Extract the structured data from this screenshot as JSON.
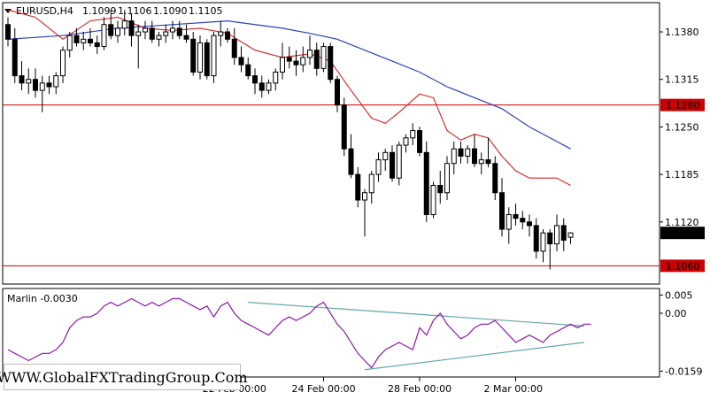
{
  "chart_data": [
    {
      "type": "candlestick",
      "symbol_label": "EURUSD,H4",
      "ohlc_header": [
        "1.1099",
        "1.1106",
        "1.1090",
        "1.1105"
      ],
      "ylim": [
        1.1035,
        1.142
      ],
      "y_ticks": [
        "1.1380",
        "1.1315",
        "1.1250",
        "1.1185",
        "1.1120"
      ],
      "current_price": {
        "label": "1.1105",
        "value": 1.1105
      },
      "levels": [
        {
          "label": "1.1280",
          "value": 1.128,
          "color": "#cc0000"
        },
        {
          "label": "1.1060",
          "value": 1.106,
          "color": "#cc0000"
        }
      ],
      "candles": [
        [
          1.139,
          1.14,
          1.136,
          1.137
        ],
        [
          1.137,
          1.1385,
          1.131,
          1.132
        ],
        [
          1.132,
          1.134,
          1.13,
          1.131
        ],
        [
          1.131,
          1.133,
          1.1295,
          1.1315
        ],
        [
          1.1315,
          1.133,
          1.129,
          1.13
        ],
        [
          1.13,
          1.132,
          1.127,
          1.131
        ],
        [
          1.131,
          1.132,
          1.1295,
          1.1305
        ],
        [
          1.1305,
          1.1325,
          1.1295,
          1.132
        ],
        [
          1.132,
          1.136,
          1.131,
          1.1355
        ],
        [
          1.1355,
          1.138,
          1.1345,
          1.1375
        ],
        [
          1.1375,
          1.1385,
          1.136,
          1.1365
        ],
        [
          1.1365,
          1.138,
          1.1355,
          1.137
        ],
        [
          1.137,
          1.1385,
          1.136,
          1.1365
        ],
        [
          1.1365,
          1.1375,
          1.135,
          1.136
        ],
        [
          1.136,
          1.14,
          1.1355,
          1.139
        ],
        [
          1.139,
          1.141,
          1.137,
          1.1375
        ],
        [
          1.1375,
          1.1395,
          1.1365,
          1.1385
        ],
        [
          1.1385,
          1.141,
          1.1375,
          1.1395
        ],
        [
          1.1395,
          1.1405,
          1.136,
          1.1375
        ],
        [
          1.1375,
          1.139,
          1.133,
          1.138
        ],
        [
          1.138,
          1.1395,
          1.137,
          1.1385
        ],
        [
          1.1385,
          1.1395,
          1.1365,
          1.137
        ],
        [
          1.137,
          1.138,
          1.136,
          1.1375
        ],
        [
          1.1375,
          1.139,
          1.1365,
          1.138
        ],
        [
          1.138,
          1.1395,
          1.137,
          1.1385
        ],
        [
          1.1385,
          1.1395,
          1.137,
          1.1375
        ],
        [
          1.1375,
          1.139,
          1.1365,
          1.137
        ],
        [
          1.137,
          1.138,
          1.132,
          1.1325
        ],
        [
          1.1325,
          1.1375,
          1.1315,
          1.1365
        ],
        [
          1.1365,
          1.137,
          1.1315,
          1.132
        ],
        [
          1.132,
          1.138,
          1.131,
          1.1375
        ],
        [
          1.1375,
          1.1395,
          1.136,
          1.138
        ],
        [
          1.138,
          1.1385,
          1.1365,
          1.137
        ],
        [
          1.137,
          1.1385,
          1.1335,
          1.1345
        ],
        [
          1.1345,
          1.136,
          1.1325,
          1.1335
        ],
        [
          1.1335,
          1.1345,
          1.1315,
          1.132
        ],
        [
          1.132,
          1.133,
          1.1295,
          1.131
        ],
        [
          1.131,
          1.132,
          1.129,
          1.13
        ],
        [
          1.13,
          1.1315,
          1.1295,
          1.131
        ],
        [
          1.131,
          1.133,
          1.13,
          1.1325
        ],
        [
          1.1325,
          1.1365,
          1.1315,
          1.1345
        ],
        [
          1.1345,
          1.136,
          1.133,
          1.134
        ],
        [
          1.134,
          1.1355,
          1.132,
          1.1335
        ],
        [
          1.1335,
          1.136,
          1.1325,
          1.1345
        ],
        [
          1.1345,
          1.1375,
          1.1335,
          1.1355
        ],
        [
          1.1355,
          1.1365,
          1.132,
          1.133
        ],
        [
          1.133,
          1.1365,
          1.1325,
          1.136
        ],
        [
          1.136,
          1.1365,
          1.131,
          1.1315
        ],
        [
          1.1315,
          1.132,
          1.127,
          1.128
        ],
        [
          1.128,
          1.129,
          1.121,
          1.122
        ],
        [
          1.122,
          1.124,
          1.118,
          1.1185
        ],
        [
          1.1185,
          1.1195,
          1.114,
          1.115
        ],
        [
          1.115,
          1.1165,
          1.11,
          1.116
        ],
        [
          1.116,
          1.119,
          1.1145,
          1.1185
        ],
        [
          1.1185,
          1.1215,
          1.1175,
          1.1205
        ],
        [
          1.1205,
          1.122,
          1.119,
          1.1215
        ],
        [
          1.1215,
          1.1225,
          1.1175,
          1.118
        ],
        [
          1.118,
          1.123,
          1.117,
          1.1225
        ],
        [
          1.1225,
          1.124,
          1.1215,
          1.1235
        ],
        [
          1.1235,
          1.1255,
          1.1225,
          1.1245
        ],
        [
          1.1245,
          1.125,
          1.121,
          1.1215
        ],
        [
          1.1215,
          1.123,
          1.112,
          1.113
        ],
        [
          1.113,
          1.1175,
          1.1125,
          1.117
        ],
        [
          1.117,
          1.119,
          1.1145,
          1.116
        ],
        [
          1.116,
          1.121,
          1.115,
          1.12
        ],
        [
          1.12,
          1.123,
          1.1185,
          1.122
        ],
        [
          1.122,
          1.123,
          1.12,
          1.121
        ],
        [
          1.121,
          1.1225,
          1.12,
          1.122
        ],
        [
          1.122,
          1.124,
          1.1195,
          1.12
        ],
        [
          1.12,
          1.1215,
          1.1185,
          1.1205
        ],
        [
          1.1205,
          1.1235,
          1.1195,
          1.12
        ],
        [
          1.12,
          1.121,
          1.115,
          1.116
        ],
        [
          1.116,
          1.118,
          1.11,
          1.111
        ],
        [
          1.111,
          1.114,
          1.109,
          1.113
        ],
        [
          1.113,
          1.1145,
          1.1115,
          1.1125
        ],
        [
          1.1125,
          1.1135,
          1.111,
          1.112
        ],
        [
          1.112,
          1.113,
          1.11,
          1.1115
        ],
        [
          1.1115,
          1.1125,
          1.107,
          1.108
        ],
        [
          1.108,
          1.111,
          1.1065,
          1.1105
        ],
        [
          1.1105,
          1.111,
          1.1055,
          1.109
        ],
        [
          1.109,
          1.113,
          1.108,
          1.1115
        ],
        [
          1.1115,
          1.1125,
          1.108,
          1.1095
        ],
        [
          1.1099,
          1.1106,
          1.109,
          1.1105
        ]
      ],
      "ma_fast": [
        [
          0,
          1.141
        ],
        [
          4,
          1.14
        ],
        [
          8,
          1.137
        ],
        [
          12,
          1.1395
        ],
        [
          16,
          1.14
        ],
        [
          20,
          1.1385
        ],
        [
          24,
          1.1382
        ],
        [
          28,
          1.1385
        ],
        [
          32,
          1.1378
        ],
        [
          36,
          1.1355
        ],
        [
          40,
          1.1345
        ],
        [
          44,
          1.135
        ],
        [
          47,
          1.134
        ],
        [
          50,
          1.13
        ],
        [
          53,
          1.1262
        ],
        [
          55,
          1.1255
        ],
        [
          57,
          1.127
        ],
        [
          60,
          1.1295
        ],
        [
          62,
          1.129
        ],
        [
          64,
          1.1245
        ],
        [
          66,
          1.1232
        ],
        [
          68,
          1.124
        ],
        [
          70,
          1.1235
        ],
        [
          72,
          1.121
        ],
        [
          74,
          1.119
        ],
        [
          76,
          1.118
        ],
        [
          80,
          1.118
        ],
        [
          82,
          1.117
        ]
      ],
      "ma_slow": [
        [
          0,
          1.137
        ],
        [
          8,
          1.1375
        ],
        [
          16,
          1.1385
        ],
        [
          24,
          1.139
        ],
        [
          32,
          1.1395
        ],
        [
          40,
          1.1385
        ],
        [
          44,
          1.1378
        ],
        [
          48,
          1.137
        ],
        [
          52,
          1.1355
        ],
        [
          56,
          1.134
        ],
        [
          60,
          1.1325
        ],
        [
          64,
          1.1305
        ],
        [
          68,
          1.129
        ],
        [
          72,
          1.1275
        ],
        [
          76,
          1.125
        ],
        [
          80,
          1.123
        ],
        [
          82,
          1.122
        ]
      ]
    },
    {
      "type": "line",
      "indicator_label": "Marlin -0.0030",
      "ylim": [
        -0.0175,
        0.0068
      ],
      "y_ticks": [
        "0.005",
        "0.00",
        "-0.0159"
      ],
      "series": [
        {
          "values": [
            -0.01,
            -0.011,
            -0.012,
            -0.013,
            -0.012,
            -0.011,
            -0.011,
            -0.01,
            -0.008,
            -0.004,
            -0.002,
            -0.001,
            -0.001,
            0.0,
            0.002,
            0.003,
            0.002,
            0.003,
            0.004,
            0.003,
            0.002,
            0.003,
            0.002,
            0.003,
            0.004,
            0.004,
            0.003,
            0.002,
            0.001,
            0.002,
            -0.001,
            0.002,
            0.003,
            0.0,
            -0.002,
            -0.003,
            -0.004,
            -0.005,
            -0.006,
            -0.004,
            -0.002,
            -0.001,
            -0.002,
            -0.001,
            0.0,
            0.002,
            0.003,
            0.0,
            -0.003,
            -0.005,
            -0.008,
            -0.011,
            -0.013,
            -0.015,
            -0.012,
            -0.01,
            -0.009,
            -0.008,
            -0.009,
            -0.01,
            -0.004,
            -0.006,
            -0.002,
            0.0,
            -0.003,
            -0.005,
            -0.007,
            -0.006,
            -0.004,
            -0.003,
            -0.003,
            -0.002,
            -0.004,
            -0.006,
            -0.008,
            -0.007,
            -0.006,
            -0.007,
            -0.008,
            -0.006,
            -0.005,
            -0.004,
            -0.003,
            -0.004,
            -0.003,
            -0.003
          ]
        }
      ],
      "trendlines": [
        {
          "from": [
            35,
            0.003
          ],
          "to": [
            84,
            -0.0035
          ],
          "color": "#5fa8a8"
        },
        {
          "from": [
            52,
            -0.0155
          ],
          "to": [
            84,
            -0.008
          ],
          "color": "#5fa8a8"
        }
      ]
    }
  ],
  "x_labels": [
    {
      "text": "22 Feb 00:00",
      "bar": 33
    },
    {
      "text": "24 Feb 00:00",
      "bar": 46
    },
    {
      "text": "28 Feb 00:00",
      "bar": 60
    },
    {
      "text": "2 Mar 00:00",
      "bar": 74
    }
  ],
  "watermark": "WWW.GlobalFXTradingGroup.Com"
}
